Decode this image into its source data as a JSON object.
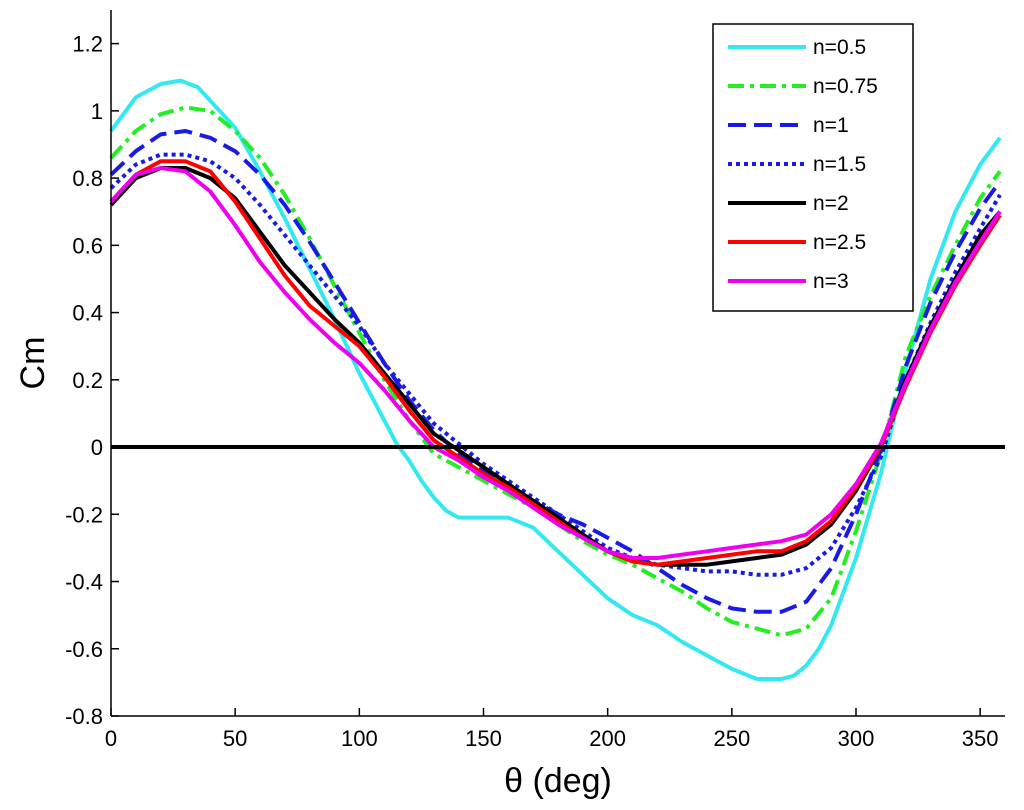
{
  "chart_data": {
    "type": "line",
    "title": "",
    "xlabel": "θ (deg)",
    "ylabel": "Cm",
    "xlim": [
      0,
      360
    ],
    "ylim": [
      -0.8,
      1.3
    ],
    "xticks": [
      0,
      50,
      100,
      150,
      200,
      250,
      300,
      350
    ],
    "xtick_labels": [
      "0",
      "50",
      "100",
      "150",
      "200",
      "250",
      "300",
      "350"
    ],
    "yticks": [
      -0.8,
      -0.6,
      -0.4,
      -0.2,
      0,
      0.2,
      0.4,
      0.6,
      0.8,
      1,
      1.2
    ],
    "ytick_labels": [
      "-0.8",
      "-0.6",
      "-0.4",
      "-0.2",
      "0",
      "0.2",
      "0.4",
      "0.6",
      "0.8",
      "1",
      "1.2"
    ],
    "grid": false,
    "legend_position": "top-right",
    "reference_line": {
      "y": 0,
      "color": "#000000"
    },
    "series": [
      {
        "name": "n=0.5",
        "color": "#33e8f0",
        "dash": "solid",
        "x": [
          0,
          10,
          20,
          28,
          35,
          50,
          60,
          70,
          80,
          90,
          100,
          110,
          115,
          120,
          125,
          130,
          135,
          140,
          150,
          160,
          170,
          180,
          190,
          200,
          210,
          220,
          230,
          240,
          250,
          260,
          265,
          270,
          275,
          280,
          285,
          290,
          300,
          310,
          320,
          330,
          340,
          350,
          358
        ],
        "values": [
          0.94,
          1.04,
          1.08,
          1.09,
          1.07,
          0.95,
          0.82,
          0.68,
          0.53,
          0.38,
          0.22,
          0.08,
          0.01,
          -0.04,
          -0.1,
          -0.15,
          -0.19,
          -0.21,
          -0.21,
          -0.21,
          -0.24,
          -0.31,
          -0.38,
          -0.45,
          -0.5,
          -0.53,
          -0.58,
          -0.62,
          -0.66,
          -0.69,
          -0.69,
          -0.69,
          -0.68,
          -0.65,
          -0.6,
          -0.53,
          -0.33,
          -0.08,
          0.23,
          0.5,
          0.7,
          0.84,
          0.92
        ]
      },
      {
        "name": "n=0.75",
        "color": "#22ee22",
        "dash": "dashdot",
        "x": [
          0,
          10,
          20,
          30,
          40,
          50,
          60,
          70,
          80,
          90,
          100,
          110,
          120,
          130,
          140,
          150,
          160,
          170,
          180,
          190,
          200,
          210,
          220,
          230,
          240,
          250,
          260,
          270,
          280,
          290,
          300,
          310,
          320,
          330,
          340,
          350,
          358
        ],
        "values": [
          0.86,
          0.94,
          0.99,
          1.01,
          1.0,
          0.94,
          0.86,
          0.75,
          0.62,
          0.48,
          0.34,
          0.2,
          0.08,
          -0.02,
          -0.06,
          -0.1,
          -0.14,
          -0.18,
          -0.23,
          -0.28,
          -0.32,
          -0.35,
          -0.39,
          -0.43,
          -0.48,
          -0.52,
          -0.54,
          -0.56,
          -0.54,
          -0.45,
          -0.25,
          -0.02,
          0.27,
          0.45,
          0.6,
          0.74,
          0.82
        ]
      },
      {
        "name": "n=1",
        "color": "#1a1ae6",
        "dash": "dash",
        "x": [
          0,
          10,
          20,
          30,
          40,
          50,
          60,
          70,
          80,
          90,
          100,
          110,
          120,
          130,
          140,
          150,
          160,
          170,
          180,
          190,
          200,
          210,
          220,
          230,
          240,
          250,
          260,
          270,
          280,
          290,
          300,
          310,
          320,
          330,
          340,
          350,
          358
        ],
        "values": [
          0.81,
          0.88,
          0.93,
          0.94,
          0.92,
          0.88,
          0.81,
          0.72,
          0.61,
          0.49,
          0.37,
          0.25,
          0.14,
          0.05,
          -0.02,
          -0.07,
          -0.12,
          -0.16,
          -0.2,
          -0.23,
          -0.27,
          -0.31,
          -0.36,
          -0.41,
          -0.45,
          -0.48,
          -0.49,
          -0.49,
          -0.46,
          -0.36,
          -0.2,
          -0.01,
          0.24,
          0.43,
          0.58,
          0.71,
          0.79
        ]
      },
      {
        "name": "n=1.5",
        "color": "#1a1ae6",
        "dash": "dot",
        "x": [
          0,
          10,
          20,
          30,
          40,
          50,
          60,
          70,
          80,
          90,
          100,
          110,
          120,
          130,
          140,
          150,
          160,
          170,
          180,
          190,
          200,
          210,
          220,
          230,
          240,
          250,
          260,
          270,
          280,
          290,
          300,
          310,
          320,
          330,
          340,
          350,
          358
        ],
        "values": [
          0.77,
          0.84,
          0.87,
          0.87,
          0.85,
          0.8,
          0.72,
          0.63,
          0.54,
          0.45,
          0.36,
          0.25,
          0.16,
          0.07,
          0.01,
          -0.05,
          -0.1,
          -0.15,
          -0.2,
          -0.25,
          -0.3,
          -0.33,
          -0.35,
          -0.36,
          -0.37,
          -0.37,
          -0.38,
          -0.38,
          -0.36,
          -0.3,
          -0.18,
          -0.03,
          0.2,
          0.37,
          0.52,
          0.65,
          0.75
        ]
      },
      {
        "name": "n=2",
        "color": "#000000",
        "dash": "solid",
        "x": [
          0,
          10,
          20,
          30,
          40,
          50,
          60,
          70,
          80,
          90,
          100,
          110,
          120,
          130,
          140,
          150,
          160,
          170,
          180,
          190,
          200,
          210,
          220,
          230,
          240,
          250,
          260,
          270,
          280,
          290,
          300,
          310,
          320,
          330,
          340,
          350,
          358
        ],
        "values": [
          0.72,
          0.8,
          0.83,
          0.83,
          0.8,
          0.74,
          0.64,
          0.54,
          0.46,
          0.38,
          0.31,
          0.22,
          0.13,
          0.04,
          -0.01,
          -0.06,
          -0.11,
          -0.16,
          -0.21,
          -0.26,
          -0.31,
          -0.34,
          -0.35,
          -0.35,
          -0.35,
          -0.34,
          -0.33,
          -0.32,
          -0.29,
          -0.23,
          -0.13,
          0.0,
          0.2,
          0.36,
          0.5,
          0.63,
          0.7
        ]
      },
      {
        "name": "n=2.5",
        "color": "#ff0000",
        "dash": "solid",
        "x": [
          0,
          10,
          20,
          30,
          40,
          50,
          60,
          70,
          80,
          90,
          100,
          110,
          120,
          130,
          140,
          150,
          160,
          170,
          180,
          190,
          200,
          210,
          220,
          230,
          240,
          250,
          260,
          270,
          280,
          290,
          300,
          310,
          320,
          330,
          340,
          350,
          358
        ],
        "values": [
          0.73,
          0.81,
          0.85,
          0.85,
          0.82,
          0.73,
          0.62,
          0.51,
          0.42,
          0.36,
          0.3,
          0.21,
          0.11,
          0.02,
          -0.03,
          -0.08,
          -0.12,
          -0.17,
          -0.22,
          -0.27,
          -0.31,
          -0.34,
          -0.35,
          -0.34,
          -0.33,
          -0.32,
          -0.31,
          -0.31,
          -0.28,
          -0.22,
          -0.12,
          0.0,
          0.18,
          0.34,
          0.48,
          0.6,
          0.69
        ]
      },
      {
        "name": "n=3",
        "color": "#ee00ee",
        "dash": "solid",
        "x": [
          0,
          10,
          20,
          30,
          40,
          50,
          60,
          70,
          80,
          90,
          100,
          110,
          120,
          130,
          140,
          150,
          160,
          170,
          180,
          190,
          200,
          210,
          220,
          230,
          240,
          250,
          260,
          270,
          280,
          290,
          300,
          310,
          320,
          330,
          340,
          350,
          358
        ],
        "values": [
          0.73,
          0.81,
          0.83,
          0.82,
          0.76,
          0.66,
          0.55,
          0.46,
          0.38,
          0.31,
          0.25,
          0.17,
          0.08,
          0.0,
          -0.04,
          -0.09,
          -0.13,
          -0.18,
          -0.23,
          -0.27,
          -0.31,
          -0.33,
          -0.33,
          -0.32,
          -0.31,
          -0.3,
          -0.29,
          -0.28,
          -0.26,
          -0.2,
          -0.11,
          0.01,
          0.19,
          0.35,
          0.49,
          0.61,
          0.7
        ]
      }
    ]
  }
}
